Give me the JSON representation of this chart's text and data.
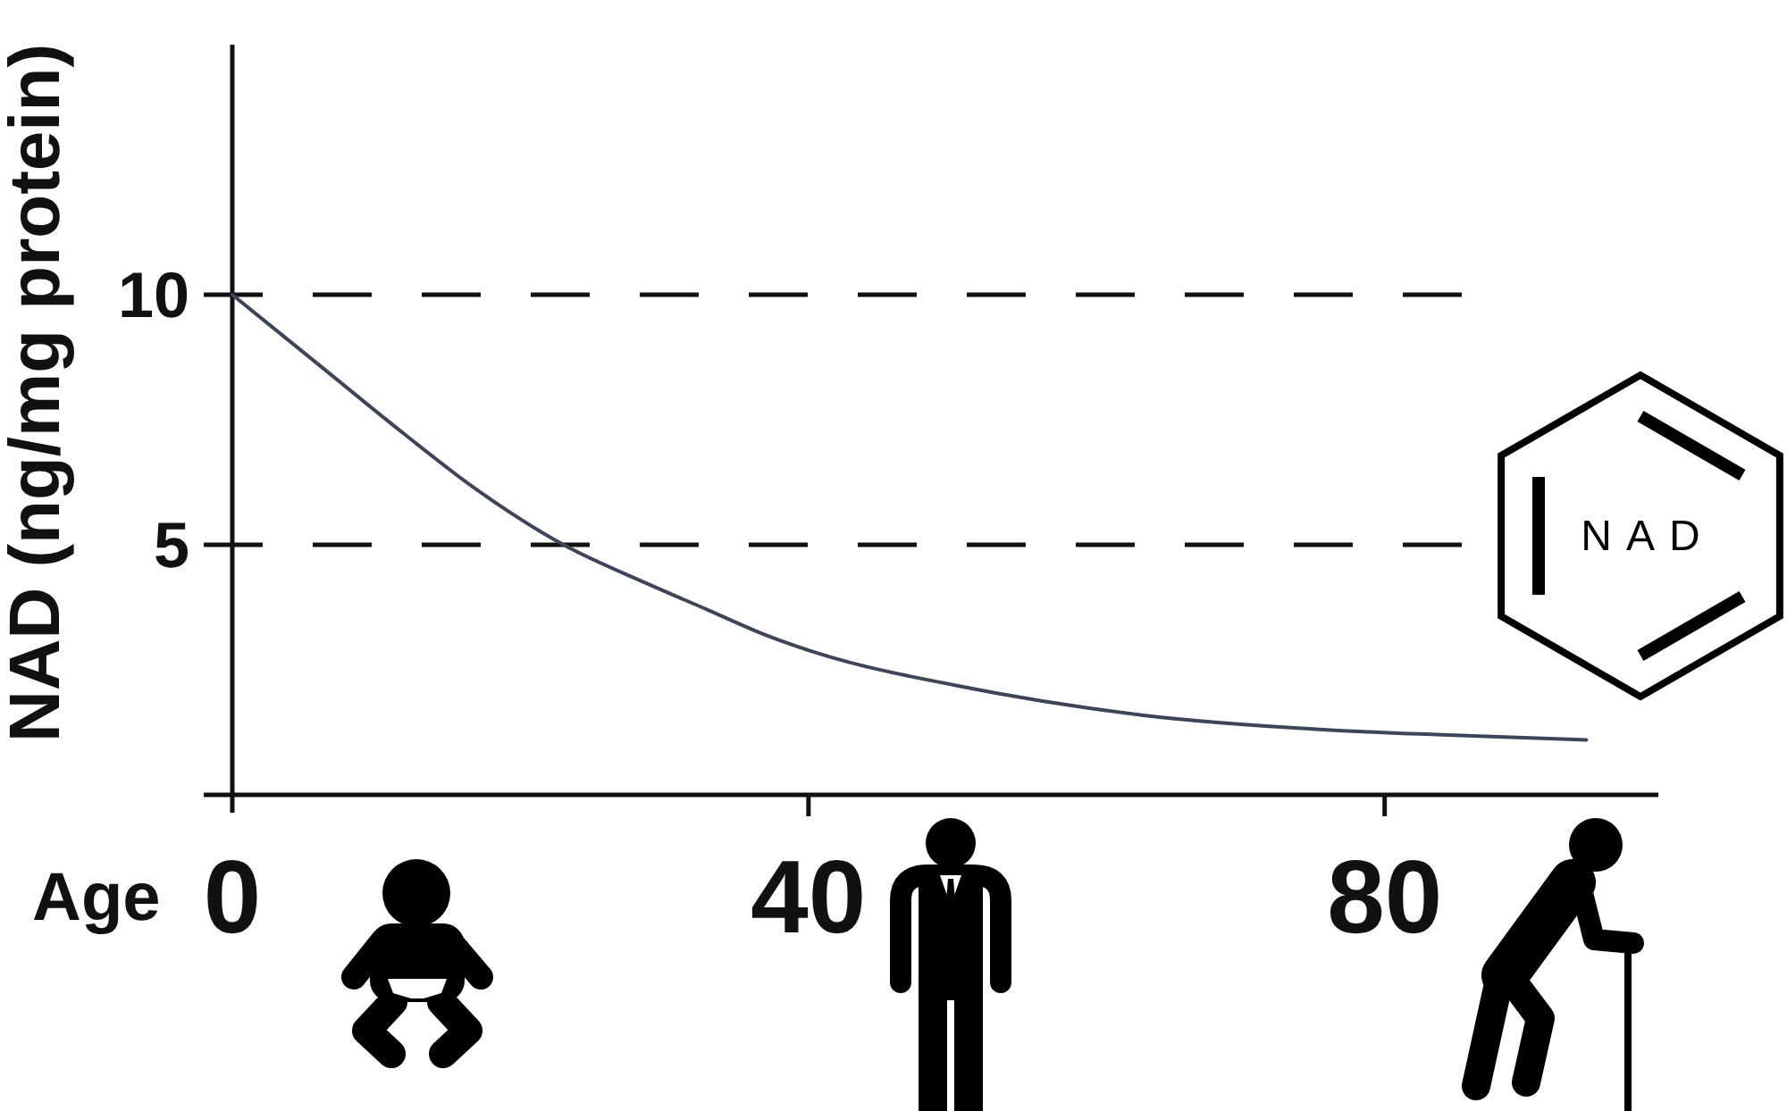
{
  "chart_data": {
    "type": "line",
    "xlabel": "Age",
    "ylabel": "NAD (ng/mg protein)",
    "x": [
      0,
      6,
      12,
      16.5,
      23,
      29,
      33,
      37,
      41,
      50,
      63,
      76,
      84,
      94
    ],
    "series": [
      {
        "color": "#3d4659",
        "values": [
          10,
          8.6,
          7.2,
          6.2,
          5.0,
          4.2,
          3.7,
          3.2,
          2.8,
          2.2,
          1.6,
          1.3,
          1.2,
          1.1
        ]
      }
    ],
    "xlim": [
      0,
      99
    ],
    "xticks": [
      0,
      40,
      80
    ],
    "ylim": [
      0,
      15
    ],
    "yticks": [
      5,
      10
    ],
    "grid": "y",
    "annotations": [
      "NAD"
    ]
  }
}
